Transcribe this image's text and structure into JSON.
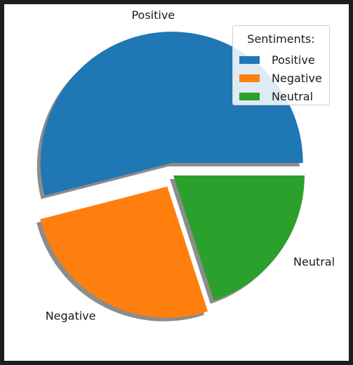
{
  "chart_data": {
    "type": "pie",
    "title": "",
    "slices": [
      {
        "label": "Positive",
        "value": 54,
        "color": "#1f77b4",
        "explode": true
      },
      {
        "label": "Negative",
        "value": 26,
        "color": "#ff7f0e",
        "explode": true
      },
      {
        "label": "Neutral",
        "value": 20,
        "color": "#2ca02c",
        "explode": false
      }
    ],
    "shadow": true,
    "start_angle": 0,
    "legend": {
      "title": "Sentiments:",
      "placement": "top-right",
      "entries": [
        "Positive",
        "Negative",
        "Neutral"
      ]
    }
  }
}
